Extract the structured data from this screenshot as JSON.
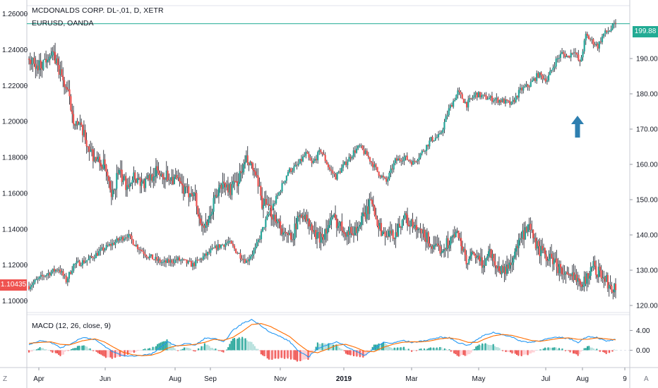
{
  "legend": {
    "title": "MCDONALDS CORP. DL-,01, D, XETR",
    "overlay": "EURUSD, OANDA",
    "macd": "MACD (12, 26, close, 9)"
  },
  "price_tags": {
    "right": "199.88",
    "left": "1.10435"
  },
  "corner_buttons": {
    "left": "Z",
    "right": "A"
  },
  "colors": {
    "up": "#26a69a",
    "down": "#ef5350",
    "wick": "#131722",
    "macd_line": "#2196f3",
    "signal_line": "#ff6d00",
    "hline": "#22ab94",
    "arrow": "#2e7fb0"
  },
  "chart_data": [
    {
      "type": "candlestick",
      "name": "MCDONALDS CORP. DL-,01, D, XETR",
      "axis": "right",
      "y_ticks": [
        "120.00",
        "130.00",
        "140.00",
        "150.00",
        "160.00",
        "170.00",
        "180.00",
        "190.00"
      ],
      "ylim": [
        118,
        205
      ],
      "last": 199.88,
      "x_ticks": [
        "Apr",
        "Jun",
        "Aug",
        "Sep",
        "Nov",
        "2019",
        "Mar",
        "May",
        "Jul",
        "Aug",
        "9"
      ],
      "anchors_close": [
        [
          0,
          125.5
        ],
        [
          10,
          128.5
        ],
        [
          20,
          130.5
        ],
        [
          25,
          127.0
        ],
        [
          30,
          131.5
        ],
        [
          40,
          133.0
        ],
        [
          50,
          136.0
        ],
        [
          60,
          138.5
        ],
        [
          66,
          140.0
        ],
        [
          72,
          137.0
        ],
        [
          80,
          134.0
        ],
        [
          90,
          132.0
        ],
        [
          100,
          133.0
        ],
        [
          110,
          131.5
        ],
        [
          118,
          134.0
        ],
        [
          126,
          136.5
        ],
        [
          134,
          138.0
        ],
        [
          140,
          135.0
        ],
        [
          146,
          132.5
        ],
        [
          152,
          136.0
        ],
        [
          160,
          145.0
        ],
        [
          168,
          152.0
        ],
        [
          174,
          158.0
        ],
        [
          180,
          159.5
        ],
        [
          186,
          163.0
        ],
        [
          190,
          160.0
        ],
        [
          196,
          164.0
        ],
        [
          202,
          158.5
        ],
        [
          206,
          156.5
        ],
        [
          212,
          160.0
        ],
        [
          218,
          163.5
        ],
        [
          222,
          165.0
        ],
        [
          228,
          162.0
        ],
        [
          234,
          158.0
        ],
        [
          240,
          155.0
        ],
        [
          246,
          161.0
        ],
        [
          252,
          162.0
        ],
        [
          258,
          160.5
        ],
        [
          264,
          163.5
        ],
        [
          270,
          167.0
        ],
        [
          276,
          168.0
        ],
        [
          282,
          175.5
        ],
        [
          288,
          180.5
        ],
        [
          294,
          177.0
        ],
        [
          300,
          180.0
        ],
        [
          306,
          179.0
        ],
        [
          312,
          178.5
        ],
        [
          318,
          178.0
        ],
        [
          324,
          177.0
        ],
        [
          330,
          181.0
        ],
        [
          336,
          182.5
        ],
        [
          342,
          185.5
        ],
        [
          348,
          184.0
        ],
        [
          354,
          189.5
        ],
        [
          358,
          191.5
        ],
        [
          362,
          190.5
        ],
        [
          366,
          192.5
        ],
        [
          370,
          188.5
        ],
        [
          374,
          196.5
        ],
        [
          378,
          195.0
        ],
        [
          382,
          193.5
        ],
        [
          386,
          197.0
        ],
        [
          390,
          198.0
        ],
        [
          394,
          199.88
        ]
      ],
      "annotation": "up-arrow"
    },
    {
      "type": "candlestick",
      "name": "EURUSD, OANDA",
      "axis": "left",
      "y_ticks": [
        "1.10000",
        "1.12000",
        "1.14000",
        "1.16000",
        "1.18000",
        "1.20000",
        "1.22000",
        "1.24000",
        "1.26000"
      ],
      "ylim": [
        1.0935,
        1.2646
      ],
      "last": 1.10435,
      "anchors_close": [
        [
          0,
          1.235
        ],
        [
          5,
          1.23
        ],
        [
          10,
          1.232
        ],
        [
          15,
          1.238
        ],
        [
          20,
          1.235
        ],
        [
          25,
          1.225
        ],
        [
          30,
          1.215
        ],
        [
          34,
          1.202
        ],
        [
          40,
          1.195
        ],
        [
          46,
          1.185
        ],
        [
          52,
          1.178
        ],
        [
          58,
          1.175
        ],
        [
          63,
          1.156
        ],
        [
          68,
          1.172
        ],
        [
          74,
          1.165
        ],
        [
          80,
          1.17
        ],
        [
          88,
          1.165
        ],
        [
          96,
          1.172
        ],
        [
          104,
          1.17
        ],
        [
          112,
          1.168
        ],
        [
          120,
          1.16
        ],
        [
          126,
          1.162
        ],
        [
          130,
          1.145
        ],
        [
          136,
          1.14
        ],
        [
          142,
          1.158
        ],
        [
          148,
          1.165
        ],
        [
          154,
          1.162
        ],
        [
          160,
          1.168
        ],
        [
          166,
          1.178
        ],
        [
          172,
          1.172
        ],
        [
          178,
          1.155
        ],
        [
          184,
          1.15
        ],
        [
          190,
          1.145
        ],
        [
          196,
          1.135
        ],
        [
          202,
          1.138
        ],
        [
          208,
          1.15
        ],
        [
          214,
          1.142
        ],
        [
          220,
          1.135
        ],
        [
          226,
          1.138
        ],
        [
          232,
          1.146
        ],
        [
          238,
          1.142
        ],
        [
          244,
          1.138
        ],
        [
          250,
          1.14
        ],
        [
          256,
          1.147
        ],
        [
          262,
          1.156
        ],
        [
          268,
          1.14
        ],
        [
          274,
          1.136
        ],
        [
          280,
          1.138
        ],
        [
          286,
          1.147
        ],
        [
          292,
          1.142
        ],
        [
          298,
          1.138
        ],
        [
          304,
          1.135
        ],
        [
          310,
          1.128
        ],
        [
          316,
          1.13
        ],
        [
          322,
          1.134
        ],
        [
          328,
          1.138
        ],
        [
          334,
          1.12
        ],
        [
          340,
          1.126
        ],
        [
          346,
          1.12
        ],
        [
          352,
          1.128
        ],
        [
          358,
          1.118
        ],
        [
          364,
          1.117
        ],
        [
          370,
          1.125
        ],
        [
          376,
          1.135
        ],
        [
          382,
          1.14
        ],
        [
          388,
          1.13
        ],
        [
          394,
          1.125
        ],
        [
          400,
          1.123
        ],
        [
          406,
          1.117
        ],
        [
          412,
          1.112
        ],
        [
          418,
          1.114
        ],
        [
          424,
          1.11
        ],
        [
          430,
          1.12
        ],
        [
          436,
          1.115
        ],
        [
          442,
          1.11
        ],
        [
          448,
          1.106
        ]
      ]
    },
    {
      "type": "macd",
      "name": "MACD (12, 26, close, 9)",
      "y_ticks": [
        "4.00",
        "0.00"
      ],
      "ylim": [
        -3.5,
        7.2
      ],
      "macd_anchors": [
        [
          0,
          1.2
        ],
        [
          8,
          2.0
        ],
        [
          14,
          1.6
        ],
        [
          20,
          0.5
        ],
        [
          26,
          1.2
        ],
        [
          34,
          2.6
        ],
        [
          42,
          2.2
        ],
        [
          48,
          0.8
        ],
        [
          54,
          -0.4
        ],
        [
          60,
          -1.1
        ],
        [
          66,
          -1.2
        ],
        [
          72,
          -1.0
        ],
        [
          78,
          -0.8
        ],
        [
          84,
          0.5
        ],
        [
          88,
          1.8
        ],
        [
          94,
          0.8
        ],
        [
          100,
          1.4
        ],
        [
          106,
          1.0
        ],
        [
          112,
          2.4
        ],
        [
          118,
          2.4
        ],
        [
          124,
          1.6
        ],
        [
          130,
          4.0
        ],
        [
          136,
          5.4
        ],
        [
          142,
          6.2
        ],
        [
          148,
          5.0
        ],
        [
          154,
          3.6
        ],
        [
          160,
          2.8
        ],
        [
          166,
          1.8
        ],
        [
          172,
          -0.2
        ],
        [
          178,
          -1.4
        ],
        [
          184,
          0.4
        ],
        [
          190,
          1.0
        ],
        [
          196,
          1.8
        ],
        [
          202,
          0.8
        ],
        [
          208,
          -0.2
        ],
        [
          214,
          -1.0
        ],
        [
          220,
          0.3
        ],
        [
          226,
          1.6
        ],
        [
          232,
          1.4
        ],
        [
          238,
          2.0
        ],
        [
          244,
          1.6
        ],
        [
          250,
          1.8
        ],
        [
          256,
          2.2
        ],
        [
          262,
          2.6
        ],
        [
          268,
          2.5
        ],
        [
          274,
          1.5
        ],
        [
          280,
          1.0
        ],
        [
          286,
          2.2
        ],
        [
          290,
          3.0
        ],
        [
          296,
          3.6
        ],
        [
          302,
          3.2
        ],
        [
          308,
          2.6
        ],
        [
          314,
          1.8
        ],
        [
          320,
          1.6
        ],
        [
          326,
          2.0
        ],
        [
          332,
          2.4
        ],
        [
          338,
          2.6
        ],
        [
          344,
          2.4
        ],
        [
          350,
          1.6
        ],
        [
          356,
          2.8
        ],
        [
          362,
          2.6
        ],
        [
          368,
          1.8
        ],
        [
          374,
          2.2
        ]
      ],
      "signal_anchors": [
        [
          0,
          1.4
        ],
        [
          8,
          1.6
        ],
        [
          14,
          1.7
        ],
        [
          20,
          1.2
        ],
        [
          26,
          1.1
        ],
        [
          34,
          1.9
        ],
        [
          42,
          2.3
        ],
        [
          48,
          1.7
        ],
        [
          54,
          0.6
        ],
        [
          60,
          -0.4
        ],
        [
          66,
          -0.9
        ],
        [
          72,
          -1.1
        ],
        [
          78,
          -1.0
        ],
        [
          84,
          -0.4
        ],
        [
          88,
          0.4
        ],
        [
          94,
          0.9
        ],
        [
          100,
          1.0
        ],
        [
          106,
          1.2
        ],
        [
          112,
          1.6
        ],
        [
          118,
          2.2
        ],
        [
          124,
          2.0
        ],
        [
          130,
          2.6
        ],
        [
          136,
          3.8
        ],
        [
          142,
          5.2
        ],
        [
          148,
          5.4
        ],
        [
          154,
          4.8
        ],
        [
          160,
          3.8
        ],
        [
          166,
          2.8
        ],
        [
          172,
          1.2
        ],
        [
          178,
          -0.2
        ],
        [
          184,
          -0.5
        ],
        [
          190,
          0.2
        ],
        [
          196,
          1.0
        ],
        [
          202,
          1.2
        ],
        [
          208,
          0.6
        ],
        [
          214,
          -0.2
        ],
        [
          220,
          -0.3
        ],
        [
          226,
          0.6
        ],
        [
          232,
          1.2
        ],
        [
          238,
          1.6
        ],
        [
          244,
          1.7
        ],
        [
          250,
          1.7
        ],
        [
          256,
          1.9
        ],
        [
          262,
          2.3
        ],
        [
          268,
          2.5
        ],
        [
          274,
          2.2
        ],
        [
          280,
          1.6
        ],
        [
          286,
          1.6
        ],
        [
          290,
          2.2
        ],
        [
          296,
          2.9
        ],
        [
          302,
          3.2
        ],
        [
          308,
          3.0
        ],
        [
          314,
          2.5
        ],
        [
          320,
          2.0
        ],
        [
          326,
          1.8
        ],
        [
          332,
          2.1
        ],
        [
          338,
          2.4
        ],
        [
          344,
          2.5
        ],
        [
          350,
          2.2
        ],
        [
          356,
          2.2
        ],
        [
          362,
          2.5
        ],
        [
          368,
          2.3
        ],
        [
          374,
          2.1
        ]
      ]
    }
  ]
}
